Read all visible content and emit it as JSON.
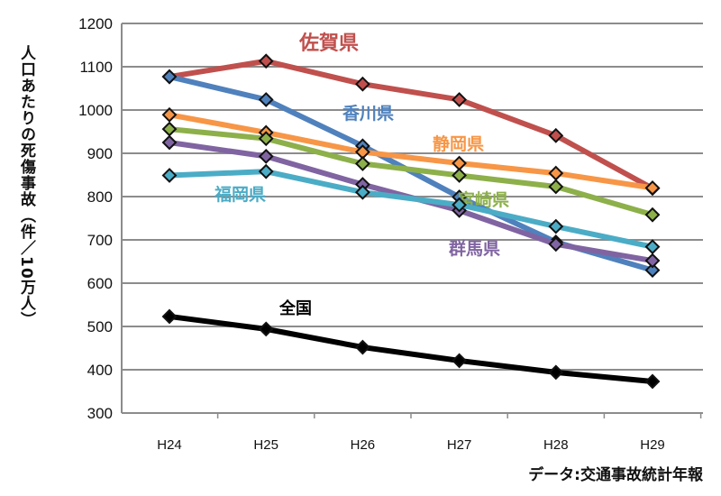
{
  "chart_data": {
    "type": "line",
    "ylabel": "人口あたりの死傷事故（件／10万人）",
    "xlabel": "",
    "source_note": "データ:交通事故統計年報",
    "categories": [
      "H24",
      "H25",
      "H26",
      "H27",
      "H28",
      "H29"
    ],
    "ylim": [
      300,
      1200
    ],
    "yticks": [
      300,
      400,
      500,
      600,
      700,
      800,
      900,
      1000,
      1100,
      1200
    ],
    "grid": true,
    "legend": "inline labels",
    "series": [
      {
        "name": "佐賀県",
        "color": "#c0504d",
        "values": [
          1077,
          1113,
          1060,
          1024,
          941,
          819
        ]
      },
      {
        "name": "香川県",
        "color": "#4f81bd",
        "values": [
          1077,
          1024,
          917,
          799,
          695,
          630
        ]
      },
      {
        "name": "静岡県",
        "color": "#f79646",
        "values": [
          989,
          948,
          903,
          877,
          854,
          820
        ]
      },
      {
        "name": "宮崎県",
        "color": "#8db04a",
        "values": [
          956,
          934,
          876,
          849,
          823,
          758
        ]
      },
      {
        "name": "群馬県",
        "color": "#8064a2",
        "values": [
          925,
          893,
          828,
          768,
          690,
          652
        ]
      },
      {
        "name": "福岡県",
        "color": "#4bacc6",
        "values": [
          849,
          858,
          810,
          781,
          731,
          684
        ]
      },
      {
        "name": "全国",
        "color": "#000000",
        "values": [
          523,
          494,
          452,
          421,
          394,
          373
        ]
      }
    ]
  }
}
